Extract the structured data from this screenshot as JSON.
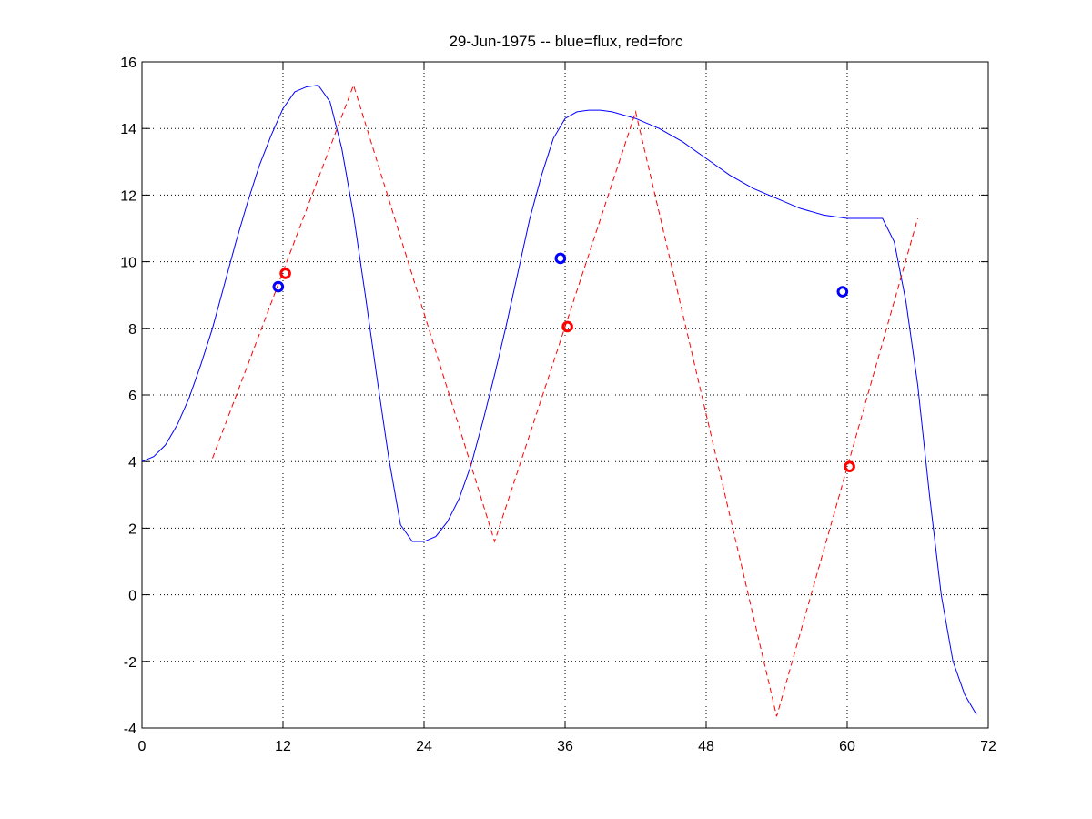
{
  "chart_data": {
    "type": "line",
    "title": "29-Jun-1975 -- blue=flux, red=forc",
    "xlabel": "",
    "ylabel": "",
    "xlim": [
      0,
      72
    ],
    "ylim": [
      -4,
      16
    ],
    "xticks": [
      0,
      12,
      24,
      36,
      48,
      60,
      72
    ],
    "yticks": [
      -4,
      -2,
      0,
      2,
      4,
      6,
      8,
      10,
      12,
      14,
      16
    ],
    "grid": true,
    "colors": {
      "flux": "#0000ff",
      "forc": "#ff0000"
    },
    "series": [
      {
        "key": "flux",
        "style": "solid",
        "x": [
          0,
          1,
          2,
          3,
          4,
          5,
          6,
          7,
          8,
          9,
          10,
          11,
          12,
          13,
          14,
          15,
          16,
          17,
          18,
          19,
          20,
          21,
          22,
          23,
          24,
          25,
          26,
          27,
          28,
          29,
          30,
          31,
          32,
          33,
          34,
          35,
          36,
          37,
          38,
          39,
          40,
          42,
          44,
          46,
          48,
          50,
          52,
          54,
          56,
          58,
          60,
          62,
          63,
          64,
          65,
          66,
          67,
          68,
          69,
          70,
          71
        ],
        "y": [
          4.0,
          4.15,
          4.5,
          5.1,
          5.9,
          6.9,
          8.0,
          9.3,
          10.6,
          11.8,
          12.9,
          13.8,
          14.6,
          15.1,
          15.25,
          15.3,
          14.8,
          13.4,
          11.4,
          9.0,
          6.5,
          4.1,
          2.1,
          1.6,
          1.6,
          1.75,
          2.2,
          2.9,
          3.9,
          5.2,
          6.6,
          8.1,
          9.7,
          11.3,
          12.6,
          13.7,
          14.3,
          14.5,
          14.55,
          14.55,
          14.5,
          14.3,
          14.0,
          13.6,
          13.1,
          12.6,
          12.2,
          11.9,
          11.6,
          11.4,
          11.3,
          11.3,
          11.3,
          10.6,
          8.8,
          6.3,
          3.0,
          0.0,
          -2.0,
          -3.0,
          -3.6
        ]
      },
      {
        "key": "forc",
        "style": "dashed",
        "x": [
          6,
          18,
          30,
          42,
          54,
          66
        ],
        "y": [
          4.1,
          15.3,
          1.6,
          14.5,
          -3.65,
          11.3
        ]
      }
    ],
    "markers": [
      {
        "key": "flux",
        "points": [
          {
            "x": 11.6,
            "y": 9.25
          },
          {
            "x": 35.6,
            "y": 10.1
          },
          {
            "x": 59.6,
            "y": 9.1
          }
        ]
      },
      {
        "key": "forc",
        "points": [
          {
            "x": 12.2,
            "y": 9.65
          },
          {
            "x": 36.2,
            "y": 8.05
          },
          {
            "x": 60.2,
            "y": 3.85
          }
        ]
      }
    ]
  }
}
